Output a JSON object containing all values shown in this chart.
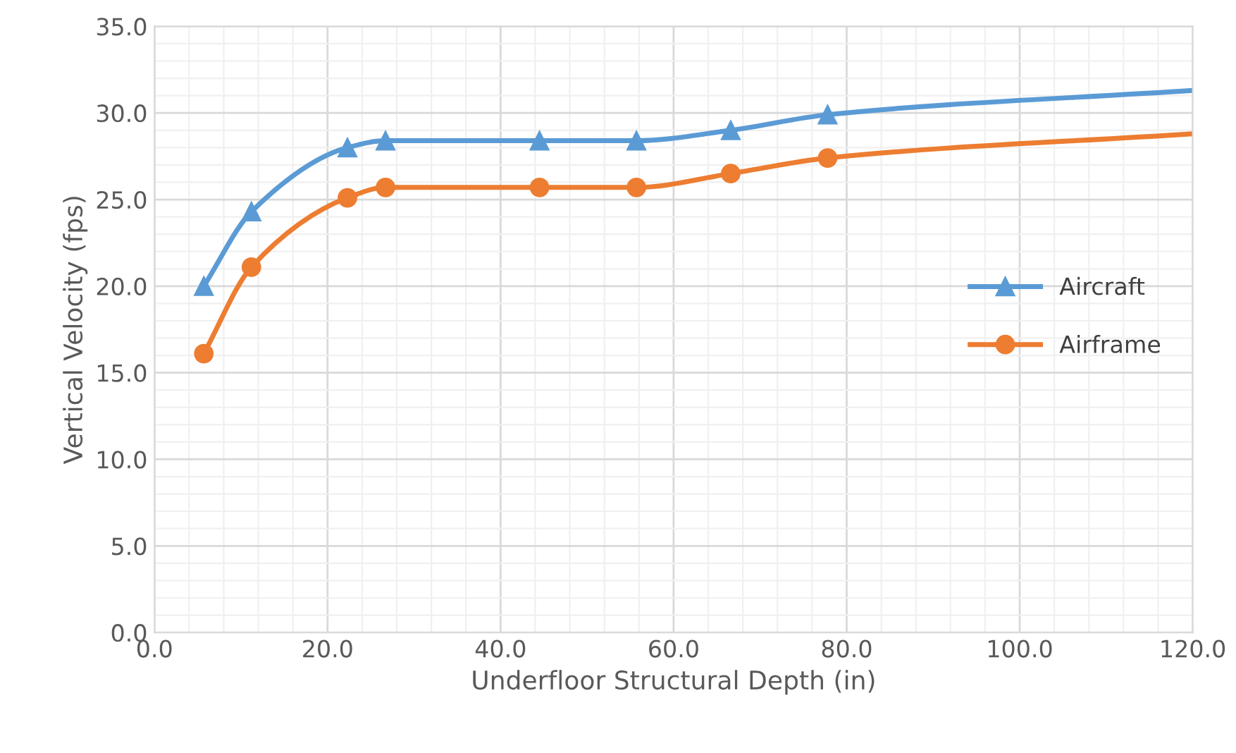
{
  "chart_data": {
    "type": "line",
    "xlabel": "Underfloor Structural Depth (in)",
    "ylabel": "Vertical Velocity (fps)",
    "xlim": [
      0,
      120
    ],
    "ylim": [
      0,
      35
    ],
    "xticks": [
      {
        "value": 0,
        "label": "0.0"
      },
      {
        "value": 20,
        "label": "20.0"
      },
      {
        "value": 40,
        "label": "40.0"
      },
      {
        "value": 60,
        "label": "60.0"
      },
      {
        "value": 80,
        "label": "80.0"
      },
      {
        "value": 100,
        "label": "100.0"
      },
      {
        "value": 120,
        "label": "120.0"
      }
    ],
    "yticks": [
      {
        "value": 0,
        "label": "0.0"
      },
      {
        "value": 5,
        "label": "5.0"
      },
      {
        "value": 10,
        "label": "10.0"
      },
      {
        "value": 15,
        "label": "15.0"
      },
      {
        "value": 20,
        "label": "20.0"
      },
      {
        "value": 25,
        "label": "25.0"
      },
      {
        "value": 30,
        "label": "30.0"
      },
      {
        "value": 35,
        "label": "35.0"
      }
    ],
    "grid": true,
    "legend": "right",
    "series": [
      {
        "name": "Aircraft",
        "color": "#5b9bd5",
        "marker": "triangle",
        "x": [
          5.7,
          11.2,
          22.3,
          26.7,
          44.5,
          55.7,
          66.6,
          77.8,
          120
        ],
        "values": [
          20.0,
          24.3,
          28.0,
          28.4,
          28.4,
          28.4,
          29.0,
          29.9,
          31.3
        ]
      },
      {
        "name": "Airframe",
        "color": "#ed7d31",
        "marker": "circle",
        "x": [
          5.7,
          11.2,
          22.3,
          26.7,
          44.5,
          55.7,
          66.6,
          77.8,
          120
        ],
        "values": [
          16.1,
          21.1,
          25.1,
          25.7,
          25.7,
          25.7,
          26.5,
          27.4,
          28.8
        ]
      }
    ]
  }
}
